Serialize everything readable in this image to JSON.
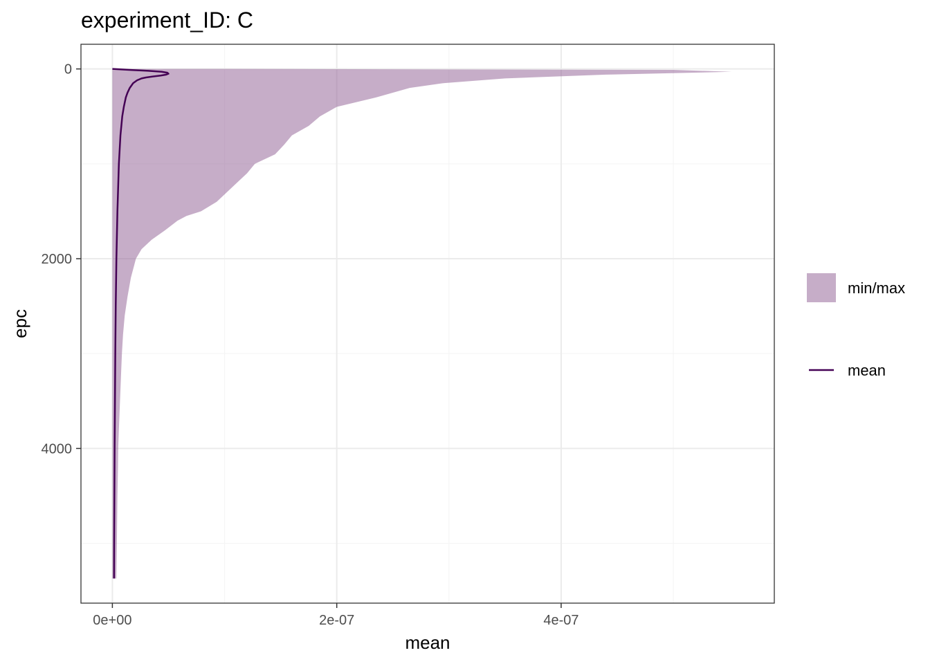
{
  "chart_data": {
    "type": "area",
    "title": "experiment_ID: C",
    "xlabel": "mean",
    "ylabel": "epc",
    "xlim": [
      -2.8e-08,
      5.9e-07
    ],
    "ylim": [
      5630,
      -260
    ],
    "y_reversed": true,
    "x_ticks": [
      0,
      2e-07,
      4e-07
    ],
    "x_tick_labels": [
      "0e+00",
      "2e-07",
      "4e-07"
    ],
    "y_ticks": [
      0,
      2000,
      4000
    ],
    "y_tick_labels": [
      "0",
      "2000",
      "4000"
    ],
    "grid": true,
    "legend_position": "right",
    "legend": [
      {
        "label": "min/max",
        "kind": "fill"
      },
      {
        "label": "mean",
        "kind": "line"
      }
    ],
    "colors": {
      "ribbon": "#8e5b92",
      "ribbon_opacity": 0.5,
      "mean_line": "#440154",
      "grid_major": "#ebebeb",
      "grid_minor": "#f5f5f5",
      "panel_border": "#333333"
    },
    "series": [
      {
        "name": "min/max",
        "kind": "ribbon",
        "y": [
          0,
          10,
          30,
          60,
          100,
          150,
          200,
          300,
          400,
          500,
          600,
          700,
          800,
          900,
          1000,
          1100,
          1200,
          1300,
          1400,
          1500,
          1550,
          1600,
          1700,
          1800,
          1900,
          2000,
          2200,
          2400,
          2600,
          2800,
          3000,
          3200,
          3500,
          3800,
          4000,
          4200,
          4500,
          5000,
          5370
        ],
        "ymin": [
          0,
          0,
          0,
          0,
          0,
          0,
          0,
          0,
          0,
          0,
          0,
          0,
          0,
          0,
          0,
          0,
          0,
          0,
          0,
          0,
          0,
          0,
          0,
          0,
          0,
          0,
          0,
          0,
          0,
          0,
          0,
          0,
          0,
          0,
          0,
          0,
          0,
          0,
          0
        ],
        "ymax": [
          1e-07,
          5e-07,
          5.52e-07,
          4.4e-07,
          3.5e-07,
          2.95e-07,
          2.65e-07,
          2.35e-07,
          2e-07,
          1.85e-07,
          1.75e-07,
          1.6e-07,
          1.53e-07,
          1.45e-07,
          1.27e-07,
          1.2e-07,
          1.11e-07,
          1.02e-07,
          9.3e-08,
          7.9e-08,
          6.6e-08,
          5.8e-08,
          4.7e-08,
          3.5e-08,
          2.6e-08,
          2.1e-08,
          1.65e-08,
          1.35e-08,
          1.1e-08,
          9.5e-09,
          8.5e-09,
          7.8e-09,
          6.8e-09,
          5.8e-09,
          5.2e-09,
          5e-09,
          4.5e-09,
          4e-09,
          3.5e-09
        ]
      },
      {
        "name": "mean",
        "kind": "line",
        "y": [
          0,
          10,
          20,
          30,
          40,
          50,
          60,
          70,
          80,
          90,
          100,
          120,
          150,
          200,
          250,
          300,
          400,
          500,
          700,
          1000,
          1500,
          2000,
          2500,
          3000,
          4000,
          5000,
          5370
        ],
        "x": [
          0,
          1.5e-08,
          3.2e-08,
          4.4e-08,
          4.9e-08,
          5e-08,
          4.8e-08,
          4.3e-08,
          3.6e-08,
          3e-08,
          2.6e-08,
          2.2e-08,
          1.85e-08,
          1.55e-08,
          1.35e-08,
          1.2e-08,
          1.02e-08,
          8.8e-09,
          7.2e-09,
          5.8e-09,
          4.5e-09,
          3.6e-09,
          3e-09,
          2.6e-09,
          2e-09,
          1.6e-09,
          1.5e-09
        ]
      }
    ]
  }
}
